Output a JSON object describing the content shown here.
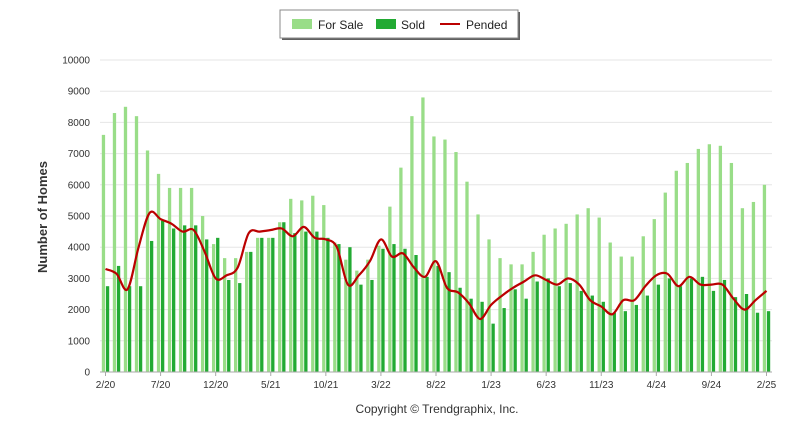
{
  "chart_data": {
    "type": "bar",
    "ylabel": "Number of Homes",
    "ylim": [
      0,
      10000
    ],
    "y_ticks": [
      "0",
      "1000",
      "2000",
      "3000",
      "4000",
      "5000",
      "6000",
      "7000",
      "8000",
      "9000",
      "10000"
    ],
    "x_tick_labels": [
      "2/20",
      "7/20",
      "12/20",
      "5/21",
      "10/21",
      "3/22",
      "8/22",
      "1/23",
      "6/23",
      "11/23",
      "4/24",
      "9/24",
      "2/25"
    ],
    "x_tick_every": 5,
    "legend_position": "top-center",
    "grid": true,
    "categories": [
      "2/20",
      "3/20",
      "4/20",
      "5/20",
      "6/20",
      "7/20",
      "8/20",
      "9/20",
      "10/20",
      "11/20",
      "12/20",
      "1/21",
      "2/21",
      "3/21",
      "4/21",
      "5/21",
      "6/21",
      "7/21",
      "8/21",
      "9/21",
      "10/21",
      "11/21",
      "12/21",
      "1/22",
      "2/22",
      "3/22",
      "4/22",
      "5/22",
      "6/22",
      "7/22",
      "8/22",
      "9/22",
      "10/22",
      "11/22",
      "12/22",
      "1/23",
      "2/23",
      "3/23",
      "4/23",
      "5/23",
      "6/23",
      "7/23",
      "8/23",
      "9/23",
      "10/23",
      "11/23",
      "12/23",
      "1/24",
      "2/24",
      "3/24",
      "4/24",
      "5/24",
      "6/24",
      "7/24",
      "8/24",
      "9/24",
      "10/24",
      "11/24",
      "12/24",
      "1/25",
      "2/25"
    ],
    "series": [
      {
        "name": "For Sale",
        "type": "bar",
        "color": "#99dd88",
        "values": [
          7600,
          8300,
          8500,
          8200,
          7100,
          6350,
          5900,
          5900,
          5900,
          5000,
          4100,
          3650,
          3650,
          3850,
          4300,
          4300,
          4800,
          5550,
          5500,
          5650,
          5350,
          4150,
          3600,
          3250,
          3600,
          4050,
          5300,
          6550,
          8200,
          8800,
          7550,
          7450,
          7050,
          6100,
          5050,
          4250,
          3650,
          3450,
          3450,
          3850,
          4400,
          4600,
          4750,
          5050,
          5250,
          4950,
          4150,
          3700,
          3700,
          4350,
          4900,
          5750,
          6450,
          6700,
          7150,
          7300,
          7250,
          6700,
          5250,
          5450,
          6000
        ]
      },
      {
        "name": "Sold",
        "type": "bar",
        "color": "#22aa33",
        "values": [
          2750,
          3400,
          2750,
          2750,
          4200,
          4850,
          4600,
          4700,
          4700,
          4250,
          4300,
          2950,
          2850,
          3850,
          4300,
          4300,
          4800,
          4450,
          4500,
          4500,
          4300,
          4100,
          4000,
          2800,
          2950,
          3950,
          4100,
          3950,
          3750,
          3050,
          3400,
          3200,
          2700,
          2350,
          2250,
          1550,
          2050,
          2650,
          2350,
          2900,
          3000,
          2750,
          2850,
          2600,
          2450,
          2250,
          1900,
          1950,
          2150,
          2450,
          2800,
          3000,
          2750,
          3000,
          3050,
          2600,
          2950,
          2400,
          2500,
          1900,
          1950
        ]
      },
      {
        "name": "Pended",
        "type": "line",
        "color": "#bb0000",
        "values": [
          3300,
          3150,
          2650,
          4000,
          5100,
          4900,
          4750,
          4500,
          4550,
          3850,
          3000,
          3100,
          3350,
          4450,
          4500,
          4550,
          4600,
          4350,
          4650,
          4300,
          4250,
          4000,
          2800,
          3100,
          3550,
          4250,
          3700,
          3800,
          3350,
          3050,
          3550,
          2700,
          2550,
          2200,
          1700,
          2150,
          2450,
          2700,
          2900,
          3100,
          2950,
          2800,
          3000,
          2800,
          2300,
          2100,
          1850,
          2300,
          2300,
          2750,
          3100,
          3150,
          2750,
          3050,
          2800,
          2800,
          2800,
          2350,
          2000,
          2300,
          2600
        ]
      }
    ]
  },
  "credit": "Copyright © Trendgraphix, Inc."
}
